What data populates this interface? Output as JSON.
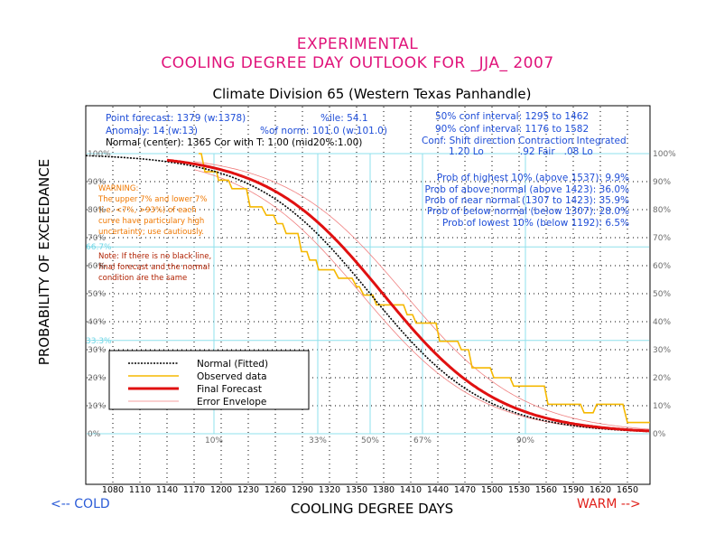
{
  "header": {
    "title_line1": "EXPERIMENTAL",
    "title_line2": "COOLING DEGREE DAY OUTLOOK FOR _JJA_ 2007",
    "subtitle": "Climate Division 65 (Western Texas Panhandle)"
  },
  "info": {
    "point_forecast": "Point forecast: 1379 (w:1378)",
    "ile": "%ile: 54.1",
    "anomaly": "Anomaly: 14 (w:13)",
    "of_norm": "%of norm:  101.0 (w:101.0)",
    "normal_center": "Normal (center): 1365 Cor with T: 1.00 (mid20%:1.00)",
    "conf50": "50% conf interval: 1295 to 1462",
    "conf90": "90% conf interval: 1176 to 1582",
    "conf_header": "Conf: Shift direction   Contraction   Integrated",
    "conf_values": "1.20 Lo            .92 Fair   .08 Lo"
  },
  "probabilities": [
    "Prob of highest 10% (above 1537):  9.9%",
    "Prob of above normal (above 1423): 36.0%",
    "Prob of near normal (1307 to 1423): 35.9%",
    "Prob of below normal (below 1307): 28.0%",
    "Prob of lowest 10% (below 1192):  6.5%"
  ],
  "warning": {
    "lines": [
      "WARNING:",
      "The upper 7% and lower 7%",
      "(i.e. <7%, >93%) of each",
      "curve have particulary high",
      "uncertainty; use cautiously."
    ]
  },
  "note": {
    "lines": [
      "Note: If there is no black line,",
      "final forecast and  the normal",
      "condition are the same"
    ]
  },
  "legend": {
    "normal": "Normal (Fitted)",
    "observed": "Observed data",
    "final": "Final Forecast",
    "envelope": "Error Envelope"
  },
  "axis": {
    "xlabel": "COOLING DEGREE DAYS",
    "ylabel": "PROBABILITY OF EXCEEDANCE",
    "cold": "<-- COLD",
    "warm": "WARM -->"
  },
  "colors": {
    "title": "#e0137a",
    "normal": "#000000",
    "observed": "#f5b800",
    "final": "#e01010",
    "envelope": "#f08080",
    "grid_cyan": "#8fe0ec"
  },
  "chart_data": {
    "type": "line",
    "xlabel": "COOLING DEGREE DAYS",
    "ylabel": "PROBABILITY OF EXCEEDANCE",
    "x_ticks": [
      1080,
      1110,
      1140,
      1170,
      1200,
      1230,
      1260,
      1290,
      1320,
      1350,
      1380,
      1410,
      1440,
      1470,
      1500,
      1530,
      1560,
      1590,
      1620,
      1650
    ],
    "y_ticks_left": [
      "0%",
      "10%",
      "20%",
      "30%",
      "40%",
      "50%",
      "60%",
      "70%",
      "80%",
      "90%",
      "100%"
    ],
    "y_ticks_right": [
      "0%",
      "10%",
      "20%",
      "30%",
      "40%",
      "50%",
      "60%",
      "70%",
      "80%",
      "90%",
      "100%"
    ],
    "percentile_labels": [
      {
        "label": "10%",
        "x": 1192
      },
      {
        "label": "33%",
        "x": 1307
      },
      {
        "label": "50%",
        "x": 1365
      },
      {
        "label": "67%",
        "x": 1423
      },
      {
        "label": "90%",
        "x": 1537
      }
    ],
    "cyan_y_labels": [
      {
        "label": "66.7%",
        "y": 66.7
      },
      {
        "label": "33.3%",
        "y": 33.3
      }
    ],
    "xlim": [
      1050,
      1675
    ],
    "ylim": [
      0,
      100
    ],
    "normal_params": {
      "center": 1365,
      "scale": 64
    },
    "final_params": {
      "center": 1379,
      "scale": 64
    },
    "envelope_params": {
      "upper_center": 1403,
      "lower_center": 1355,
      "scale": 66
    },
    "observed": {
      "x": [
        1175,
        1178,
        1182,
        1195,
        1197,
        1208,
        1212,
        1228,
        1232,
        1245,
        1250,
        1258,
        1262,
        1268,
        1272,
        1285,
        1289,
        1295,
        1298,
        1305,
        1308,
        1325,
        1330,
        1345,
        1350,
        1353,
        1358,
        1368,
        1372,
        1402,
        1406,
        1412,
        1416,
        1438,
        1442,
        1462,
        1466,
        1474,
        1478,
        1498,
        1502,
        1520,
        1524,
        1558,
        1562,
        1598,
        1602,
        1612,
        1616,
        1645,
        1650,
        1675
      ],
      "y": [
        100,
        100,
        93.5,
        93.5,
        90.5,
        90.5,
        87.5,
        87.5,
        81,
        81,
        78,
        78,
        75,
        75,
        71.5,
        71.5,
        65,
        65,
        62,
        62,
        58.5,
        58.5,
        55.5,
        55.5,
        52.5,
        52.5,
        49.5,
        49.5,
        46,
        46,
        42.5,
        42.5,
        39.5,
        39.5,
        33,
        33,
        30,
        30,
        23.5,
        23.5,
        20,
        20,
        17,
        17,
        10.5,
        10.5,
        7.5,
        7.5,
        10.5,
        10.5,
        4,
        4
      ]
    }
  }
}
